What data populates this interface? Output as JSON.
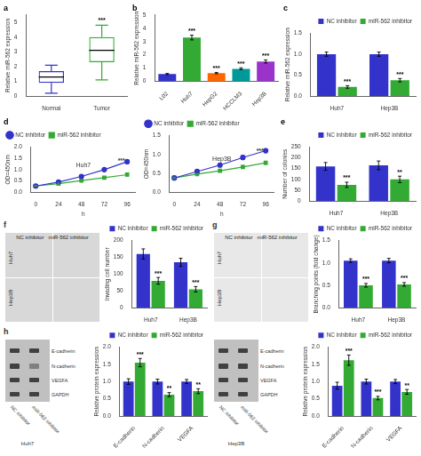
{
  "chart_data": [
    {
      "type": "box",
      "title": "a",
      "ylabel": "Relative miR-562 expression",
      "categories": [
        "Normal",
        "Tumor"
      ],
      "boxes": [
        {
          "med": 1.3,
          "q1": 0.9,
          "q3": 1.7,
          "whislo": 0.2,
          "whishi": 2.1
        },
        {
          "med": 3.1,
          "q1": 2.3,
          "q3": 4.0,
          "whislo": 1.1,
          "whishi": 4.8
        }
      ],
      "colors": [
        "#3333cc",
        "#33aa33"
      ],
      "ylim": [
        0,
        5.5
      ],
      "yticks": [
        0,
        1,
        2,
        3,
        4,
        5
      ],
      "grid": false,
      "annotations": [
        {
          "text": "***",
          "x": "Tumor",
          "y": 4.9
        }
      ]
    },
    {
      "type": "bar",
      "title": "b",
      "ylabel": "Relative miR-562 expression",
      "categories": [
        "L02",
        "Huh7",
        "HepG2",
        "HCCLM3",
        "Hep3B"
      ],
      "values": [
        0.55,
        3.3,
        0.62,
        0.95,
        1.5
      ],
      "errors": [
        0.05,
        0.18,
        0.05,
        0.07,
        0.12
      ],
      "colors": [
        "#3333cc",
        "#33aa33",
        "#ff6600",
        "#009999",
        "#9933cc"
      ],
      "ylim": [
        0,
        5.0
      ],
      "yticks": [
        0,
        1,
        2,
        3,
        4,
        5
      ],
      "grid": false,
      "annotations": [
        {
          "text": "***",
          "category": "Huh7"
        },
        {
          "text": "***",
          "category": "HepG2"
        },
        {
          "text": "***",
          "category": "HCCLM3"
        },
        {
          "text": "***",
          "category": "Hep3B"
        }
      ]
    },
    {
      "type": "bar",
      "title": "c",
      "ylabel": "Relative miR-562 expression",
      "categories": [
        "Huh7",
        "Hep3B"
      ],
      "series": [
        {
          "name": "NC inhibitor",
          "color": "#3333cc",
          "values": [
            1.0,
            1.0
          ],
          "errors": [
            0.05,
            0.05
          ]
        },
        {
          "name": "miR-562 inhibitor",
          "color": "#33aa33",
          "values": [
            0.22,
            0.38
          ],
          "errors": [
            0.03,
            0.04
          ]
        }
      ],
      "ylim": [
        0,
        1.5
      ],
      "yticks": [
        {
          "value": 0,
          "label": "0.0"
        },
        0.5,
        {
          "value": 1,
          "label": "1.0"
        },
        1.5
      ],
      "grid": false,
      "legend": "upper right",
      "annotations": [
        {
          "text": "***",
          "category": "Huh7",
          "series": "miR-562 inhibitor"
        },
        {
          "text": "***",
          "category": "Hep3B",
          "series": "miR-562 inhibitor"
        }
      ]
    },
    {
      "type": "line",
      "title": "d",
      "xlabel": "h",
      "ylabel": "OD=450nm",
      "x": [
        0,
        24,
        48,
        72,
        96
      ],
      "series": [
        {
          "name": "NC inhibitor",
          "color": "#3333cc",
          "marker": "circle",
          "values": [
            0.28,
            0.45,
            0.7,
            1.0,
            1.35
          ],
          "errors": [
            0.02,
            0.03,
            0.04,
            0.05,
            0.06
          ]
        },
        {
          "name": "miR-562 inhibitor",
          "color": "#33aa33",
          "marker": "square",
          "values": [
            0.28,
            0.38,
            0.52,
            0.65,
            0.78
          ],
          "errors": [
            0.02,
            0.03,
            0.03,
            0.04,
            0.05
          ]
        }
      ],
      "xlim": [
        -5,
        105
      ],
      "xticks": [
        0,
        24,
        48,
        72,
        96
      ],
      "ylim": [
        0,
        2.0
      ],
      "yticks": [
        {
          "value": 0,
          "label": "0.0"
        },
        0.5,
        {
          "value": 1,
          "label": "1.0"
        },
        1.5,
        {
          "value": 2,
          "label": "2.0"
        }
      ],
      "grid": false,
      "legend": "upper left",
      "annotations": [
        {
          "text": "Huh7"
        },
        {
          "text": "***",
          "x": 90,
          "y": 1.25
        }
      ]
    },
    {
      "type": "line",
      "xlabel": "h",
      "ylabel": "OD=450nm",
      "x": [
        0,
        24,
        48,
        72,
        96
      ],
      "series": [
        {
          "name": "NC inhibitor",
          "color": "#3333cc",
          "marker": "circle",
          "values": [
            0.38,
            0.55,
            0.72,
            0.92,
            1.1
          ],
          "errors": [
            0.02,
            0.03,
            0.04,
            0.05,
            0.05
          ]
        },
        {
          "name": "miR-562 inhibitor",
          "color": "#33aa33",
          "marker": "square",
          "values": [
            0.38,
            0.48,
            0.57,
            0.67,
            0.78
          ],
          "errors": [
            0.02,
            0.02,
            0.03,
            0.04,
            0.04
          ]
        }
      ],
      "xlim": [
        -5,
        105
      ],
      "xticks": [
        0,
        24,
        48,
        72,
        96
      ],
      "ylim": [
        0,
        1.5
      ],
      "yticks": [
        {
          "value": 0,
          "label": "0.0"
        },
        0.5,
        {
          "value": 1,
          "label": "1.0"
        },
        1.5
      ],
      "grid": false,
      "legend": "upper left",
      "annotations": [
        {
          "text": "Hep3B"
        },
        {
          "text": "***",
          "x": 90,
          "y": 1.0
        }
      ]
    },
    {
      "type": "bar",
      "title": "e",
      "ylabel": "Number of colonies",
      "categories": [
        "Huh7",
        "Hep3B"
      ],
      "series": [
        {
          "name": "NC inhibitor",
          "color": "#3333cc",
          "values": [
            160,
            165
          ],
          "errors": [
            18,
            20
          ]
        },
        {
          "name": "miR-562 inhibitor",
          "color": "#33aa33",
          "values": [
            75,
            100
          ],
          "errors": [
            12,
            15
          ]
        }
      ],
      "ylim": [
        0,
        250
      ],
      "yticks": [
        0,
        50,
        100,
        150,
        200,
        250
      ],
      "grid": false,
      "legend": "upper right",
      "annotations": [
        {
          "text": "***",
          "category": "Huh7",
          "series": "miR-562 inhibitor"
        },
        {
          "text": "**",
          "category": "Hep3B",
          "series": "miR-562 inhibitor"
        }
      ]
    },
    {
      "type": "image",
      "title": "f",
      "color": "#d8d8d8",
      "annotations": [
        {
          "text": "NC inhibitor   miR-562 inhibitor"
        },
        {
          "text": "Huh7"
        },
        {
          "text": "Hep3B"
        }
      ]
    },
    {
      "type": "bar",
      "ylabel": "Invading cell number",
      "categories": [
        "Huh7",
        "Hep3B"
      ],
      "series": [
        {
          "name": "NC inhibitor",
          "color": "#3333cc",
          "values": [
            160,
            135
          ],
          "errors": [
            15,
            12
          ]
        },
        {
          "name": "miR-562 inhibitor",
          "color": "#33aa33",
          "values": [
            80,
            55
          ],
          "errors": [
            10,
            8
          ]
        }
      ],
      "ylim": [
        0,
        200
      ],
      "yticks": [
        0,
        50,
        100,
        150,
        200
      ],
      "grid": false,
      "legend": "upper right",
      "annotations": [
        {
          "text": "***",
          "category": "Huh7",
          "series": "miR-562 inhibitor"
        },
        {
          "text": "***",
          "category": "Hep3B",
          "series": "miR-562 inhibitor"
        }
      ]
    },
    {
      "type": "image",
      "title": "g",
      "color": "#e8e8e8",
      "annotations": [
        {
          "text": "NC inhibitor   miR-562 inhibitor"
        },
        {
          "text": "Huh7"
        },
        {
          "text": "Hep3B"
        }
      ]
    },
    {
      "type": "bar",
      "ylabel": "Branching points (fold change)",
      "categories": [
        "Huh7",
        "Hep3B"
      ],
      "series": [
        {
          "name": "NC inhibitor",
          "color": "#3333cc",
          "values": [
            1.05,
            1.05
          ],
          "errors": [
            0.04,
            0.05
          ]
        },
        {
          "name": "miR-562 inhibitor",
          "color": "#33aa33",
          "values": [
            0.5,
            0.52
          ],
          "errors": [
            0.04,
            0.04
          ]
        }
      ],
      "ylim": [
        0,
        1.5
      ],
      "yticks": [
        {
          "value": 0,
          "label": "0.0"
        },
        0.5,
        {
          "value": 1,
          "label": "1.0"
        },
        1.5
      ],
      "grid": false,
      "legend": "upper right",
      "annotations": [
        {
          "text": "***",
          "category": "Huh7",
          "series": "miR-562 inhibitor"
        },
        {
          "text": "***",
          "category": "Hep3B",
          "series": "miR-562 inhibitor"
        }
      ]
    },
    {
      "type": "blot",
      "title": "h",
      "xlabel": "Huh7",
      "color": "#c0c0c0",
      "categories": [
        "E-cadherin",
        "N-cadherin",
        "VEGFA",
        "GAPDH"
      ],
      "colors": [
        [
          "#404040",
          "#404040"
        ],
        [
          "#404040",
          "#808080"
        ],
        [
          "#404040",
          "#404040"
        ],
        [
          "#404040",
          "#404040"
        ]
      ],
      "annotations": [
        {
          "text": "NC inhibitor"
        },
        {
          "text": "miR-562 inhibitor"
        }
      ]
    },
    {
      "type": "bar",
      "ylabel": "Relative protein expression",
      "categories": [
        "E-cadherin",
        "N-cadherin",
        "VEGFA"
      ],
      "series": [
        {
          "name": "NC inhibitor",
          "color": "#3333cc",
          "values": [
            1.0,
            1.0,
            1.0
          ],
          "errors": [
            0.08,
            0.07,
            0.06
          ]
        },
        {
          "name": "miR-562 inhibitor",
          "color": "#33aa33",
          "values": [
            1.55,
            0.62,
            0.72
          ],
          "errors": [
            0.12,
            0.06,
            0.07
          ]
        }
      ],
      "ylim": [
        0,
        2.0
      ],
      "yticks": [
        {
          "value": 0,
          "label": "0.0"
        },
        0.5,
        {
          "value": 1,
          "label": "1.0"
        },
        1.5,
        {
          "value": 2,
          "label": "2.0"
        }
      ],
      "grid": false,
      "legend": "upper right",
      "annotations": [
        {
          "text": "***",
          "category": "E-cadherin",
          "series": "miR-562 inhibitor"
        },
        {
          "text": "**",
          "category": "N-cadherin",
          "series": "miR-562 inhibitor"
        },
        {
          "text": "**",
          "category": "VEGFA",
          "series": "miR-562 inhibitor"
        }
      ]
    },
    {
      "type": "blot",
      "xlabel": "Hep3B",
      "color": "#c0c0c0",
      "categories": [
        "E-cadherin",
        "N-cadherin",
        "VEGFA",
        "GAPDH"
      ],
      "colors": [
        [
          "#404040",
          "#404040"
        ],
        [
          "#404040",
          "#404040"
        ],
        [
          "#404040",
          "#404040"
        ],
        [
          "#404040",
          "#404040"
        ]
      ],
      "annotations": [
        {
          "text": "NC inhibitor"
        },
        {
          "text": "miR-562 inhibitor"
        }
      ]
    },
    {
      "type": "bar",
      "ylabel": "Relative protein expression",
      "categories": [
        "E-cadherin",
        "N-cadherin",
        "VEGFA"
      ],
      "series": [
        {
          "name": "NC inhibitor",
          "color": "#3333cc",
          "values": [
            0.88,
            1.0,
            1.0
          ],
          "errors": [
            0.1,
            0.07,
            0.06
          ]
        },
        {
          "name": "miR-562 inhibitor",
          "color": "#33aa33",
          "values": [
            1.62,
            0.52,
            0.7
          ],
          "errors": [
            0.15,
            0.05,
            0.07
          ]
        }
      ],
      "ylim": [
        0,
        2.0
      ],
      "yticks": [
        {
          "value": 0,
          "label": "0.0"
        },
        0.5,
        {
          "value": 1,
          "label": "1.0"
        },
        1.5,
        {
          "value": 2,
          "label": "2.0"
        }
      ],
      "grid": false,
      "legend": "upper right",
      "annotations": [
        {
          "text": "***",
          "category": "E-cadherin",
          "series": "miR-562 inhibitor"
        },
        {
          "text": "***",
          "category": "N-cadherin",
          "series": "miR-562 inhibitor"
        },
        {
          "text": "**",
          "category": "VEGFA",
          "series": "miR-562 inhibitor"
        }
      ]
    }
  ]
}
